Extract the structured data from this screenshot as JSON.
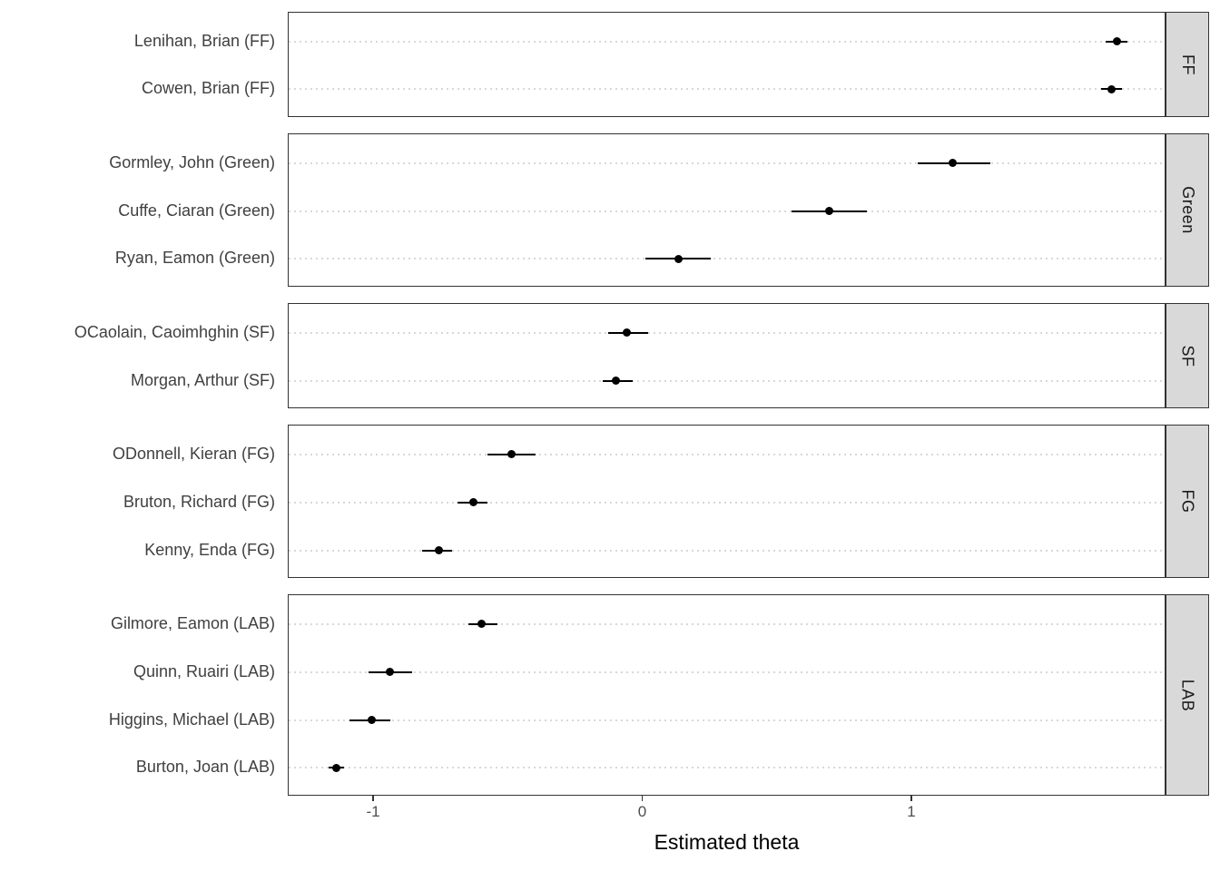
{
  "chart_data": {
    "type": "scatter",
    "subtype": "dot-whisker-pointrange",
    "title": "",
    "xlabel": "Estimated theta",
    "ylabel": "",
    "xlim": [
      -1.32,
      1.94
    ],
    "x_ticks": [
      -1,
      0,
      1
    ],
    "x_tick_labels": [
      "-1",
      "0",
      "1"
    ],
    "grid": "horizontal-dotted",
    "legend": "none",
    "facet_position": "right-strip",
    "facets": [
      {
        "party": "FF",
        "rows": [
          {
            "label": "Lenihan, Brian (FF)",
            "theta": 1.76,
            "lower": 1.72,
            "upper": 1.8
          },
          {
            "label": "Cowen, Brian (FF)",
            "theta": 1.74,
            "lower": 1.7,
            "upper": 1.78
          }
        ]
      },
      {
        "party": "Green",
        "rows": [
          {
            "label": "Gormley, John (Green)",
            "theta": 1.15,
            "lower": 1.02,
            "upper": 1.29
          },
          {
            "label": "Cuffe, Ciaran (Green)",
            "theta": 0.69,
            "lower": 0.55,
            "upper": 0.83
          },
          {
            "label": "Ryan, Eamon (Green)",
            "theta": 0.13,
            "lower": 0.01,
            "upper": 0.25
          }
        ]
      },
      {
        "party": "SF",
        "rows": [
          {
            "label": "OCaolain, Caoimhghin (SF)",
            "theta": -0.06,
            "lower": -0.13,
            "upper": 0.02
          },
          {
            "label": "Morgan, Arthur (SF)",
            "theta": -0.1,
            "lower": -0.15,
            "upper": -0.04
          }
        ]
      },
      {
        "party": "FG",
        "rows": [
          {
            "label": "ODonnell, Kieran (FG)",
            "theta": -0.49,
            "lower": -0.58,
            "upper": -0.4
          },
          {
            "label": "Bruton, Richard (FG)",
            "theta": -0.63,
            "lower": -0.69,
            "upper": -0.58
          },
          {
            "label": "Kenny, Enda (FG)",
            "theta": -0.76,
            "lower": -0.82,
            "upper": -0.71
          }
        ]
      },
      {
        "party": "LAB",
        "rows": [
          {
            "label": "Gilmore, Eamon (LAB)",
            "theta": -0.6,
            "lower": -0.65,
            "upper": -0.54
          },
          {
            "label": "Quinn, Ruairi (LAB)",
            "theta": -0.94,
            "lower": -1.02,
            "upper": -0.86
          },
          {
            "label": "Higgins, Michael (LAB)",
            "theta": -1.01,
            "lower": -1.09,
            "upper": -0.94
          },
          {
            "label": "Burton, Joan (LAB)",
            "theta": -1.14,
            "lower": -1.17,
            "upper": -1.11
          }
        ]
      }
    ],
    "colors": {
      "point": "#000000",
      "interval": "#000000",
      "strip_fill": "#d9d9d9",
      "panel_border": "#333333",
      "gridline": "#d8d8d8",
      "row_label_text": "#404040",
      "tick_text": "#4d4d4d",
      "strip_text": "#1a1a1a",
      "background": "#ffffff"
    }
  }
}
